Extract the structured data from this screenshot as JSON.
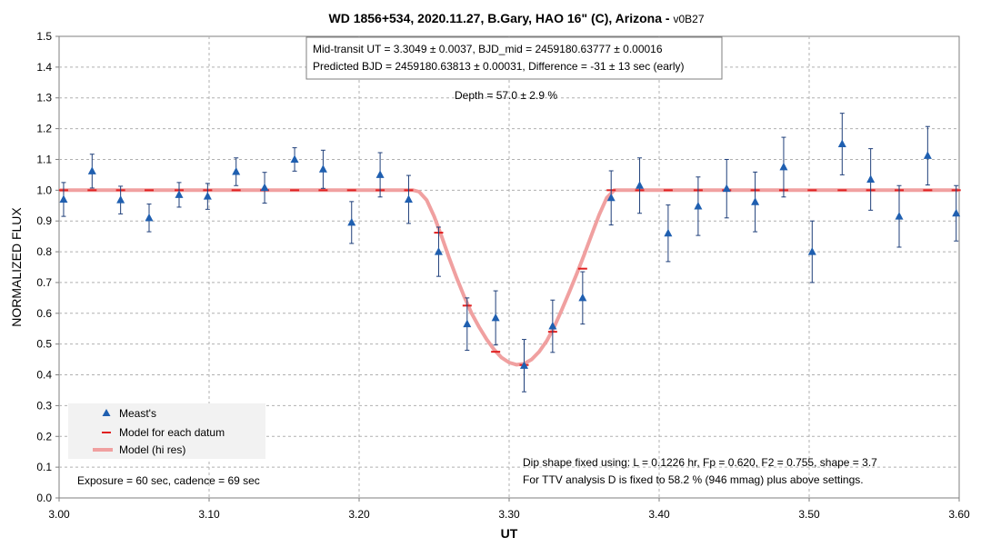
{
  "chart_data": {
    "type": "scatter",
    "title": "WD 1856+534, 2020.11.27, B.Gary, HAO 16\" (C), Arizona - ",
    "title_version": "v0B27",
    "xlabel": "UT",
    "ylabel": "NORMALIZED FLUX",
    "xlim": [
      3.0,
      3.6
    ],
    "ylim": [
      0.0,
      1.5
    ],
    "x_ticks": [
      "3.00",
      "3.10",
      "3.20",
      "3.30",
      "3.40",
      "3.50",
      "3.60"
    ],
    "y_ticks": [
      "0.0",
      "0.1",
      "0.2",
      "0.3",
      "0.4",
      "0.5",
      "0.6",
      "0.7",
      "0.8",
      "0.9",
      "1.0",
      "1.1",
      "1.2",
      "1.3",
      "1.4",
      "1.5"
    ],
    "grid": true,
    "legend_position": "bottom-left",
    "colors": {
      "measurement": "#1f5fb0",
      "errorbar": "#1f3f7a",
      "model_point": "#e02020",
      "model_line": "#f0a0a0",
      "grid": "#b0b0b0"
    },
    "annotations": {
      "box_line1": "Mid-transit UT = 3.3049 ± 0.0037, BJD_mid = 2459180.63777 ± 0.00016",
      "box_line2": "Predicted BJD = 2459180.63813 ± 0.00031, Difference = -31 ± 13 sec (early)",
      "depth": "Depth = 57.0 ± 2.9 %",
      "dip_line1": "Dip shape fixed using:  L = 0.1226 hr, Fp = 0.620, F2 = 0.755, shape = 3.7",
      "dip_line2": "For TTV analysis D is fixed  to 58.2 % (946 mmag) plus above settings.",
      "exposure": "Exposure = 60 sec, cadence = 69 sec"
    },
    "series": [
      {
        "name": "Meast's",
        "type": "scatter",
        "points": [
          {
            "x": 3.003,
            "y": 0.97,
            "err": 0.055
          },
          {
            "x": 3.022,
            "y": 1.062,
            "err": 0.055
          },
          {
            "x": 3.041,
            "y": 0.968,
            "err": 0.045
          },
          {
            "x": 3.06,
            "y": 0.91,
            "err": 0.045
          },
          {
            "x": 3.08,
            "y": 0.985,
            "err": 0.04
          },
          {
            "x": 3.099,
            "y": 0.98,
            "err": 0.042
          },
          {
            "x": 3.118,
            "y": 1.06,
            "err": 0.045
          },
          {
            "x": 3.137,
            "y": 1.008,
            "err": 0.05
          },
          {
            "x": 3.157,
            "y": 1.1,
            "err": 0.038
          },
          {
            "x": 3.176,
            "y": 1.068,
            "err": 0.062
          },
          {
            "x": 3.195,
            "y": 0.895,
            "err": 0.068
          },
          {
            "x": 3.214,
            "y": 1.05,
            "err": 0.072
          },
          {
            "x": 3.233,
            "y": 0.97,
            "err": 0.078
          },
          {
            "x": 3.253,
            "y": 0.8,
            "err": 0.08
          },
          {
            "x": 3.272,
            "y": 0.565,
            "err": 0.085
          },
          {
            "x": 3.291,
            "y": 0.585,
            "err": 0.088
          },
          {
            "x": 3.31,
            "y": 0.43,
            "err": 0.085
          },
          {
            "x": 3.329,
            "y": 0.558,
            "err": 0.085
          },
          {
            "x": 3.349,
            "y": 0.65,
            "err": 0.085
          },
          {
            "x": 3.368,
            "y": 0.975,
            "err": 0.088
          },
          {
            "x": 3.387,
            "y": 1.015,
            "err": 0.09
          },
          {
            "x": 3.406,
            "y": 0.86,
            "err": 0.092
          },
          {
            "x": 3.426,
            "y": 0.948,
            "err": 0.095
          },
          {
            "x": 3.445,
            "y": 1.005,
            "err": 0.095
          },
          {
            "x": 3.464,
            "y": 0.962,
            "err": 0.097
          },
          {
            "x": 3.483,
            "y": 1.075,
            "err": 0.097
          },
          {
            "x": 3.502,
            "y": 0.8,
            "err": 0.1
          },
          {
            "x": 3.522,
            "y": 1.15,
            "err": 0.1
          },
          {
            "x": 3.541,
            "y": 1.035,
            "err": 0.1
          },
          {
            "x": 3.56,
            "y": 0.915,
            "err": 0.1
          },
          {
            "x": 3.579,
            "y": 1.112,
            "err": 0.095
          },
          {
            "x": 3.598,
            "y": 0.925,
            "err": 0.09
          }
        ]
      },
      {
        "name": "Model for each datum",
        "type": "marker",
        "points": [
          {
            "x": 3.003,
            "y": 1.0
          },
          {
            "x": 3.022,
            "y": 1.0
          },
          {
            "x": 3.041,
            "y": 1.0
          },
          {
            "x": 3.06,
            "y": 1.0
          },
          {
            "x": 3.08,
            "y": 1.0
          },
          {
            "x": 3.099,
            "y": 1.0
          },
          {
            "x": 3.118,
            "y": 1.0
          },
          {
            "x": 3.137,
            "y": 1.0
          },
          {
            "x": 3.157,
            "y": 1.0
          },
          {
            "x": 3.176,
            "y": 1.0
          },
          {
            "x": 3.195,
            "y": 1.0
          },
          {
            "x": 3.214,
            "y": 1.0
          },
          {
            "x": 3.233,
            "y": 1.0
          },
          {
            "x": 3.253,
            "y": 0.862
          },
          {
            "x": 3.272,
            "y": 0.625
          },
          {
            "x": 3.291,
            "y": 0.475
          },
          {
            "x": 3.31,
            "y": 0.432
          },
          {
            "x": 3.329,
            "y": 0.54
          },
          {
            "x": 3.349,
            "y": 0.745
          },
          {
            "x": 3.368,
            "y": 1.0
          },
          {
            "x": 3.387,
            "y": 1.0
          },
          {
            "x": 3.406,
            "y": 1.0
          },
          {
            "x": 3.426,
            "y": 1.0
          },
          {
            "x": 3.445,
            "y": 1.0
          },
          {
            "x": 3.464,
            "y": 1.0
          },
          {
            "x": 3.483,
            "y": 1.0
          },
          {
            "x": 3.502,
            "y": 1.0
          },
          {
            "x": 3.522,
            "y": 1.0
          },
          {
            "x": 3.541,
            "y": 1.0
          },
          {
            "x": 3.56,
            "y": 1.0
          },
          {
            "x": 3.579,
            "y": 1.0
          },
          {
            "x": 3.598,
            "y": 1.0
          }
        ]
      },
      {
        "name": "Model (hi res)",
        "type": "line",
        "points": [
          {
            "x": 3.0,
            "y": 1.0
          },
          {
            "x": 3.236,
            "y": 1.0
          },
          {
            "x": 3.24,
            "y": 0.995
          },
          {
            "x": 3.245,
            "y": 0.968
          },
          {
            "x": 3.25,
            "y": 0.915
          },
          {
            "x": 3.255,
            "y": 0.85
          },
          {
            "x": 3.26,
            "y": 0.78
          },
          {
            "x": 3.265,
            "y": 0.715
          },
          {
            "x": 3.27,
            "y": 0.655
          },
          {
            "x": 3.275,
            "y": 0.6
          },
          {
            "x": 3.28,
            "y": 0.555
          },
          {
            "x": 3.285,
            "y": 0.515
          },
          {
            "x": 3.29,
            "y": 0.482
          },
          {
            "x": 3.295,
            "y": 0.456
          },
          {
            "x": 3.3,
            "y": 0.44
          },
          {
            "x": 3.305,
            "y": 0.433
          },
          {
            "x": 3.31,
            "y": 0.436
          },
          {
            "x": 3.315,
            "y": 0.45
          },
          {
            "x": 3.32,
            "y": 0.475
          },
          {
            "x": 3.325,
            "y": 0.51
          },
          {
            "x": 3.33,
            "y": 0.555
          },
          {
            "x": 3.335,
            "y": 0.61
          },
          {
            "x": 3.34,
            "y": 0.668
          },
          {
            "x": 3.345,
            "y": 0.728
          },
          {
            "x": 3.35,
            "y": 0.79
          },
          {
            "x": 3.355,
            "y": 0.855
          },
          {
            "x": 3.36,
            "y": 0.92
          },
          {
            "x": 3.365,
            "y": 0.975
          },
          {
            "x": 3.37,
            "y": 1.0
          },
          {
            "x": 3.6,
            "y": 1.0
          }
        ]
      }
    ]
  }
}
